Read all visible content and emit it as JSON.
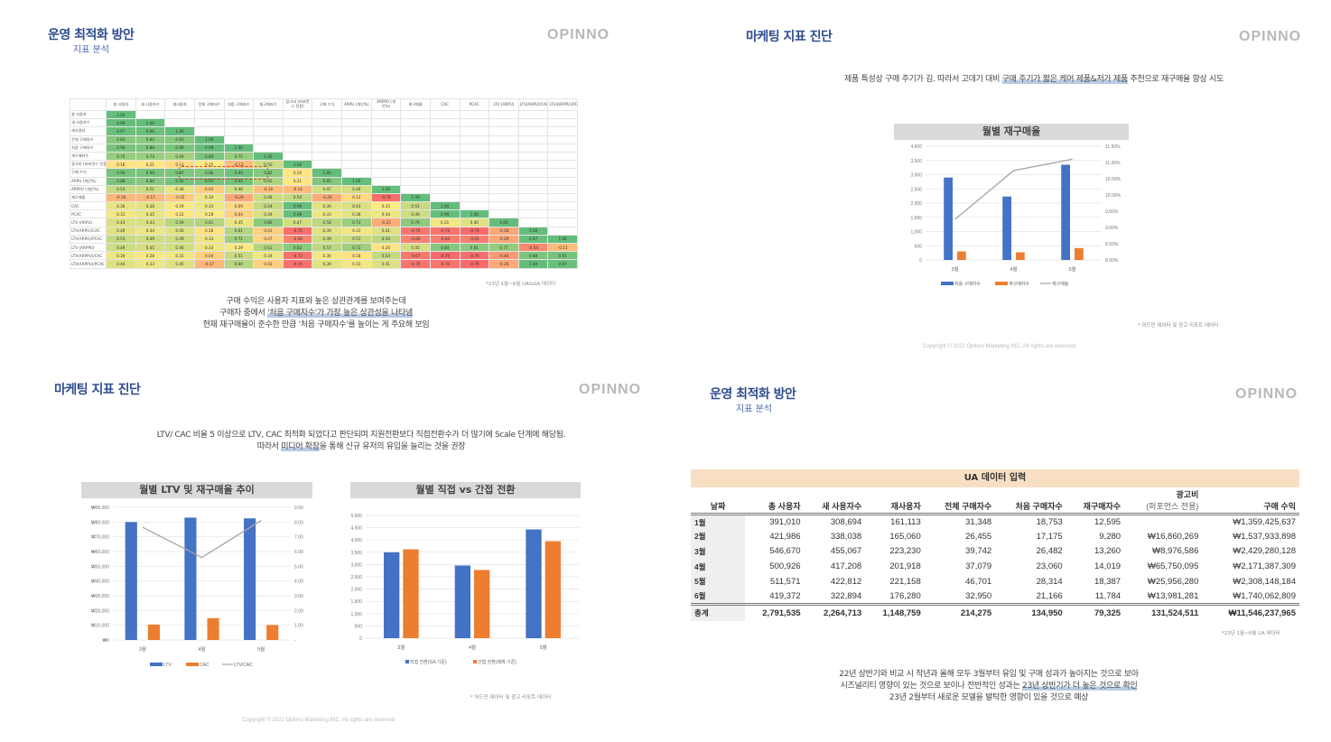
{
  "logo": "OPINNO",
  "slide_tl": {
    "title": "운영 최적화 방안",
    "subtitle": "지표 분석",
    "footnote": "*23년 1월~6월 UA&GA 데이터",
    "caption": [
      [
        {
          "text": "구매 수익은 사용자 지표와 높은 상관관계를 보여주는데",
          "hl": false
        }
      ],
      [
        {
          "text": "구매자 중에서 ",
          "hl": false
        },
        {
          "text": "'처음 구매자수'가 가장 높은 상관성을 나타냄",
          "hl": true
        }
      ],
      [
        {
          "text": "현재 재구매율이 준수한 만큼 '처음 구매자수'를 높이는 게 주요해 보임",
          "hl": false
        }
      ]
    ]
  },
  "slide_tr": {
    "title": "마케팅 지표 진단",
    "caption": [
      [
        {
          "text": "제품 특성상 구매 주기가 김. 따라서 고데기 대비 ",
          "hl": false
        },
        {
          "text": "구매 주기가 짧은 케어 제품&저가 제품",
          "hl": true
        },
        {
          "text": " 추천으로 재구매율 향상 시도",
          "hl": false
        }
      ]
    ],
    "footnote": "* 어드민 데이터 및 광고 리포트 데이터",
    "copyright": "Copyright © 2022 Opinno Marketing INC. All rights are reserved"
  },
  "slide_bl": {
    "title": "마케팅 지표 진단",
    "caption": [
      [
        {
          "text": "LTV/ CAC 비율 5 이상으로 LTV,  CAC 최적화 되었다고 판단되며 지원전환보다 직접전환수가 더 많기에 Scale 단계에 해당됨.",
          "hl": false
        }
      ],
      [
        {
          "text": "따라서 ",
          "hl": false
        },
        {
          "text": "미디어 확장",
          "hl": true
        },
        {
          "text": "을 통해 신규 유저의 유입을 늘리는 것을 권장",
          "hl": false
        }
      ]
    ],
    "footnote": "* 어드민 데이터 및 광고 리포트 데이터",
    "copyright": "Copyright © 2022 Opinno Marketing INC. All rights are reserved"
  },
  "slide_br": {
    "title": "운영 최적화 방안",
    "subtitle": "지표 분석",
    "footnote": "*23년 1월~6월 UA 데이터",
    "caption": [
      [
        {
          "text": "22년 상반기와 비교 시 작년과 올해 모두 3월부터 유입 및 구매 성과가 높아지는 것으로 보아",
          "hl": false
        }
      ],
      [
        {
          "text": "시즈널리티 영향이 있는 것으로 보이나 전반적인 성과는 ",
          "hl": false
        },
        {
          "text": "23년 상반기가 더 높은 것으로 확인",
          "hl": true
        }
      ],
      [
        {
          "text": "23년 2월부터 새로운 모델을 발탁한 영향이 있을 것으로 예상",
          "hl": false
        }
      ]
    ],
    "table": {
      "title": "UA 데이터 입력",
      "columns": [
        "날짜",
        "총 사용자",
        "새 사용자수",
        "재사용자",
        "전체 구매자수",
        "처음 구매자수",
        "재구매자수",
        "광고비\n(퍼포먼스 전용)",
        "구매 수익"
      ],
      "rows": [
        [
          "1월",
          "391,010",
          "308,694",
          "161,113",
          "31,348",
          "18,753",
          "12,595",
          "",
          "₩1,359,425,637"
        ],
        [
          "2월",
          "421,986",
          "338,038",
          "165,060",
          "26,455",
          "17,175",
          "9,280",
          "₩16,860,269",
          "₩1,537,933,898"
        ],
        [
          "3월",
          "546,670",
          "455,067",
          "223,230",
          "39,742",
          "26,482",
          "13,260",
          "₩8,976,586",
          "₩2,429,280,128"
        ],
        [
          "4월",
          "500,926",
          "417,208",
          "201,918",
          "37,079",
          "23,060",
          "14,019",
          "₩65,750,095",
          "₩2,171,387,309"
        ],
        [
          "5월",
          "511,571",
          "422,812",
          "221,158",
          "46,701",
          "28,314",
          "18,387",
          "₩25,956,280",
          "₩2,308,148,184"
        ],
        [
          "6월",
          "419,372",
          "322,894",
          "176,280",
          "32,950",
          "21,166",
          "11,784",
          "₩13,981,281",
          "₩1,740,062,809"
        ]
      ],
      "total": [
        "총계",
        "2,791,535",
        "2,264,713",
        "1,148,759",
        "214,275",
        "134,950",
        "79,325",
        "131,524,511",
        "₩11,546,237,965"
      ]
    }
  },
  "chart_data": [
    {
      "type": "heatmap",
      "columns": [
        "총 사용자",
        "새 사용자수",
        "재사용자",
        "전체 구매자수",
        "처음 구매자수",
        "재구매자수",
        "광고비 (퍼포먼스 전용)",
        "구매 수익",
        "ARPU (개인%)",
        "ARPPU (개인%)",
        "재구매율",
        "CAC",
        "PCAC",
        "LTV (ARPU)",
        "LTV(ARPU)/CAC",
        "LTV(ARPPU)/PCAC"
      ],
      "rows": [
        {
          "label": "총 사용자",
          "values": [
            1
          ]
        },
        {
          "label": "새 사용자수",
          "values": [
            0.99,
            1
          ]
        },
        {
          "label": "재사용자",
          "values": [
            0.97,
            0.96,
            1
          ]
        },
        {
          "label": "전체 구매자수",
          "values": [
            0.83,
            0.82,
            0.83,
            1
          ]
        },
        {
          "label": "처음 구매자수",
          "values": [
            0.9,
            0.88,
            0.89,
            0.98,
            1
          ]
        },
        {
          "label": "재구매자수",
          "values": [
            0.75,
            0.74,
            0.69,
            0.89,
            0.75,
            1
          ]
        },
        {
          "label": "광고비 (퍼포먼스 전용)",
          "values": [
            0.18,
            0.21,
            0.13,
            0.25,
            -0.12,
            0.5,
            1
          ]
        },
        {
          "label": "구매 수익",
          "values": [
            0.9,
            0.9,
            0.87,
            0.86,
            0.94,
            0.82,
            0.2,
            1
          ]
        },
        {
          "label": "ARPU (개인%)",
          "values": [
            0.88,
            0.84,
            0.92,
            0.92,
            0.92,
            0.65,
            0.21,
            0.85,
            1
          ]
        },
        {
          "label": "ARPPU (개인%)",
          "values": [
            0.53,
            0.51,
            0.36,
            0.02,
            0.48,
            -0.1,
            -0.14,
            0.47,
            0.46,
            1
          ]
        },
        {
          "label": "재구매율",
          "values": [
            -0.18,
            -0.17,
            -0.02,
            0.34,
            -0.29,
            0.48,
            0.54,
            -0.26,
            0.12,
            -0.76,
            1
          ]
        },
        {
          "label": "CAC",
          "values": [
            0.36,
            0.38,
            0.29,
            0.33,
            0.09,
            0.54,
            0.99,
            0.39,
            0.43,
            0.25,
            0.51,
            1
          ]
        },
        {
          "label": "PCAC",
          "values": [
            0.31,
            0.35,
            0.22,
            0.28,
            0.04,
            0.44,
            0.98,
            0.33,
            0.38,
            0.34,
            0.49,
            0.99,
            1
          ]
        },
        {
          "label": "LTV (ARPU)",
          "values": [
            0.43,
            0.43,
            0.59,
            0.61,
            0.35,
            0.8,
            0.47,
            0.58,
            0.73,
            -0.25,
            0.79,
            0.31,
            0.4,
            1
          ]
        },
        {
          "label": "LTV(ARPU)/CAC",
          "values": [
            0.4,
            0.34,
            0.4,
            0.18,
            0.61,
            0.03,
            -0.75,
            0.39,
            0.31,
            0.41,
            -0.7,
            -0.72,
            -0.79,
            -0.28,
            1
          ]
        },
        {
          "label": "LTV(ARPU)/PCAC",
          "values": [
            0.53,
            0.49,
            0.49,
            0.33,
            0.71,
            0.07,
            -0.58,
            0.49,
            0.51,
            0.56,
            -0.6,
            -0.64,
            -0.65,
            -0.29,
            0.97,
            1
          ]
        },
        {
          "label": "LTV (ARPPU)",
          "values": [
            0.49,
            0.45,
            0.46,
            0.33,
            0.29,
            0.61,
            0.82,
            0.57,
            0.72,
            0.2,
            0.45,
            0.84,
            0.81,
            0.77,
            -0.54,
            -0.13
          ]
        },
        {
          "label": "LTV(ARPPU)/CAC",
          "values": [
            0.34,
            0.28,
            0.31,
            0.04,
            0.51,
            0.34,
            -0.73,
            0.3,
            0.18,
            0.54,
            -0.67,
            -0.79,
            -0.76,
            -0.4,
            0.88,
            0.91
          ]
        },
        {
          "label": "LTV(ARPPU)/PCAC",
          "values": [
            0.4,
            0.33,
            0.4,
            -0.17,
            0.6,
            0.03,
            -0.74,
            0.39,
            0.31,
            0.41,
            -0.7,
            -0.7,
            -0.79,
            -0.28,
            1,
            0.97
          ]
        }
      ],
      "colors": {
        "low": "#f8696b",
        "mid": "#ffeb84",
        "high": "#63be7b"
      }
    },
    {
      "type": "bar",
      "title": "월별 재구매율",
      "categories": [
        "3월",
        "4월",
        "5월"
      ],
      "series": [
        {
          "name": "처음 구매자수",
          "type": "bar",
          "axis": "left",
          "color": "#4472c4",
          "values": [
            2900,
            2230,
            3350
          ]
        },
        {
          "name": "재구매자수",
          "type": "bar",
          "axis": "left",
          "color": "#ed7d31",
          "values": [
            300,
            270,
            420
          ]
        },
        {
          "name": "재구매율",
          "type": "line",
          "axis": "right",
          "color": "#a5a5a5",
          "values": [
            9.25,
            10.75,
            11.1
          ]
        }
      ],
      "yleft": {
        "lim": [
          0,
          4000
        ],
        "ticks": [
          "0",
          "500",
          "1,000",
          "1,500",
          "2,000",
          "2,500",
          "3,000",
          "3,500",
          "4,000"
        ]
      },
      "yright": {
        "lim": [
          8,
          11.5
        ],
        "ticks": [
          "8.00%",
          "8.50%",
          "9.00%",
          "9.50%",
          "10.00%",
          "10.50%",
          "11.00%",
          "11.50%"
        ]
      },
      "grid": true,
      "legend": "bottom"
    },
    {
      "type": "bar",
      "title": "월별 LTV 및 재구매율 추이",
      "categories": [
        "3월",
        "4월",
        "5월"
      ],
      "series": [
        {
          "name": "LTV",
          "type": "bar",
          "axis": "left",
          "color": "#4472c4",
          "values": [
            80000,
            83000,
            82500
          ]
        },
        {
          "name": "CAC",
          "type": "bar",
          "axis": "left",
          "color": "#ed7d31",
          "values": [
            10500,
            14800,
            10200
          ]
        },
        {
          "name": "LTV/CAC",
          "type": "line",
          "axis": "right",
          "color": "#a5a5a5",
          "values": [
            7.65,
            5.6,
            8.1
          ]
        }
      ],
      "yleft": {
        "lim": [
          0,
          90000
        ],
        "ticks": [
          "₩0",
          "₩10,000",
          "₩20,000",
          "₩30,000",
          "₩40,000",
          "₩50,000",
          "₩60,000",
          "₩70,000",
          "₩80,000",
          "₩90,000"
        ]
      },
      "yright": {
        "lim": [
          0,
          9
        ],
        "ticks": [
          "-",
          "1.00",
          "2.00",
          "3.00",
          "4.00",
          "5.00",
          "6.00",
          "7.00",
          "8.00",
          "9.00"
        ]
      },
      "grid": true,
      "legend": "bottom"
    },
    {
      "type": "bar",
      "title": "월별 직접 vs 간접 전환",
      "categories": [
        "3월",
        "4월",
        "5월"
      ],
      "series": [
        {
          "name": "직접 전환(GA 기준)",
          "type": "bar",
          "axis": "left",
          "color": "#4472c4",
          "values": [
            3500,
            2960,
            4430
          ]
        },
        {
          "name": "간접 전환(매체 기준)",
          "type": "bar",
          "axis": "left",
          "color": "#ed7d31",
          "values": [
            3620,
            2780,
            3950
          ]
        }
      ],
      "yleft": {
        "lim": [
          0,
          5000
        ],
        "ticks": [
          "0",
          "500",
          "1,000",
          "1,500",
          "2,000",
          "2,500",
          "3,000",
          "3,500",
          "4,000",
          "4,500",
          "5,000"
        ]
      },
      "grid": true,
      "legend": "bottom"
    }
  ]
}
